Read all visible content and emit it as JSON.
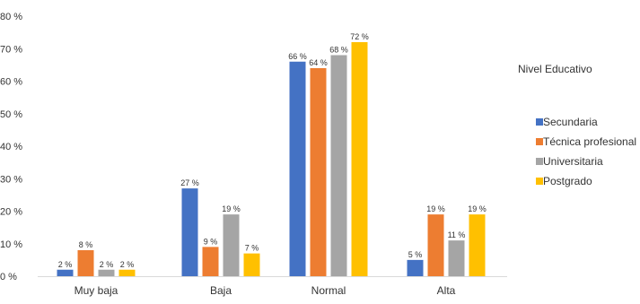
{
  "chart_data": {
    "type": "bar",
    "categories": [
      "Muy baja",
      "Baja",
      "Normal",
      "Alta"
    ],
    "series": [
      {
        "name": "Secundaria",
        "values": [
          2,
          27,
          66,
          5
        ],
        "labels": [
          "2 %",
          "27 %",
          "66 %",
          "5 %"
        ],
        "color": "#4472c4"
      },
      {
        "name": "Técnica profesional",
        "values": [
          8,
          9,
          64,
          19
        ],
        "labels": [
          "8 %",
          "9 %",
          "64 %",
          "19 %"
        ],
        "color": "#ed7d31"
      },
      {
        "name": "Universitaria",
        "values": [
          2,
          19,
          68,
          11
        ],
        "labels": [
          "2 %",
          "19 %",
          "68 %",
          "11 %"
        ],
        "color": "#a5a5a5"
      },
      {
        "name": "Postgrado",
        "values": [
          2,
          7,
          72,
          19
        ],
        "labels": [
          "2 %",
          "7 %",
          "72 %",
          "19 %"
        ],
        "color": "#ffc000"
      }
    ],
    "y_ticks": [
      "0 %",
      "10 %",
      "20 %",
      "30 %",
      "40 %",
      "50 %",
      "60 %",
      "70 %",
      "80 %"
    ],
    "ylim": [
      0,
      80
    ],
    "legend_title": "Nivel Educativo",
    "legend_position": "right",
    "grid": false
  }
}
